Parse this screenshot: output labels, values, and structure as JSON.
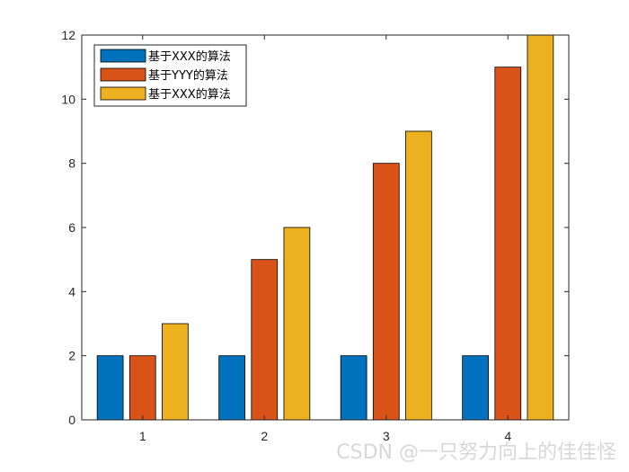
{
  "chart_data": {
    "type": "bar",
    "categories": [
      "1",
      "2",
      "3",
      "4"
    ],
    "series": [
      {
        "name": "基于XXX的算法",
        "values": [
          2,
          2,
          2,
          2
        ],
        "color": "#0072BD"
      },
      {
        "name": "基于YYY的算法",
        "values": [
          2,
          5,
          8,
          11
        ],
        "color": "#D95319"
      },
      {
        "name": "基于XXX的算法",
        "values": [
          3,
          6,
          9,
          12
        ],
        "color": "#EDB120"
      }
    ],
    "yticks": [
      0,
      2,
      4,
      6,
      8,
      10,
      12
    ],
    "ylim": [
      0,
      12
    ],
    "legend_position": "top-left",
    "grid": false
  },
  "watermark": "CSDN @一只努力向上的佳佳怪"
}
